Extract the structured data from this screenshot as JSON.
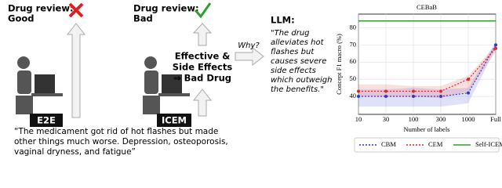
{
  "diagram": {
    "left_review": {
      "label": "Drug review:",
      "verdict": "Good"
    },
    "right_review": {
      "label": "Drug review:",
      "verdict": "Bad"
    },
    "models": [
      "E2E",
      "ICEM"
    ],
    "concept_text": [
      "Effective &",
      "Side Effects",
      "⇒ Bad Drug"
    ],
    "question": "Why?",
    "llm": {
      "label": "LLM:",
      "lines": [
        "\"The drug",
        "alleviates hot",
        "flashes but",
        "causes severe",
        "side effects",
        "which outweigh",
        "the benefits.\""
      ]
    },
    "review_text": [
      "“The medicament got rid of hot flashes but made",
      "other things much worse. Depression, osteoporosis,",
      "vaginal dryness, and fatigue”"
    ]
  },
  "chart_data": {
    "type": "line",
    "title": "CEBaB",
    "x_label": "Number of labels",
    "y_label": "Concept F1 macro (%)",
    "categories": [
      "10",
      "30",
      "100",
      "300",
      "1000",
      "Full"
    ],
    "ylim": [
      29.5,
      88
    ],
    "yticks": [
      40,
      50,
      60,
      70,
      80
    ],
    "grid": true,
    "series": [
      {
        "name": "CBM",
        "color": "#2b35d6",
        "values": [
          40,
          40,
          40,
          40,
          42,
          70
        ],
        "lower": [
          34,
          34,
          34,
          34,
          36,
          68
        ],
        "upper": [
          44,
          44,
          45,
          44,
          45,
          72
        ]
      },
      {
        "name": "CEM",
        "color": "#e0262a",
        "values": [
          43,
          43,
          43,
          43,
          50,
          68
        ],
        "lower": [
          40,
          40,
          40,
          39,
          43,
          66
        ],
        "upper": [
          47,
          47,
          46,
          46,
          52,
          70
        ]
      },
      {
        "name": "Self-ICEM",
        "color": "#2ca02c",
        "values": [
          84,
          84,
          84,
          84,
          84,
          84
        ]
      }
    ]
  }
}
